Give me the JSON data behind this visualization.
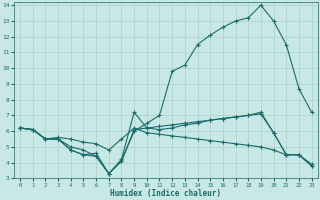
{
  "xlabel": "Humidex (Indice chaleur)",
  "background_color": "#c8e8e5",
  "grid_color": "#aed4d0",
  "line_color": "#1a6b6b",
  "xlim": [
    -0.5,
    23.5
  ],
  "ylim": [
    3,
    14.2
  ],
  "xticks": [
    0,
    1,
    2,
    3,
    4,
    5,
    6,
    7,
    8,
    9,
    10,
    11,
    12,
    13,
    14,
    15,
    16,
    17,
    18,
    19,
    20,
    21,
    22,
    23
  ],
  "yticks": [
    3,
    4,
    5,
    6,
    7,
    8,
    9,
    10,
    11,
    12,
    13,
    14
  ],
  "series": [
    [
      6.2,
      6.1,
      5.5,
      5.5,
      4.8,
      4.5,
      4.6,
      3.3,
      4.1,
      6.1,
      6.2,
      6.3,
      6.4,
      6.5,
      6.6,
      6.7,
      6.8,
      6.9,
      7.0,
      7.1,
      5.9,
      4.5,
      4.5,
      3.8
    ],
    [
      6.2,
      6.1,
      5.5,
      5.6,
      5.5,
      5.3,
      5.2,
      4.8,
      5.5,
      6.2,
      5.9,
      5.8,
      5.7,
      5.6,
      5.5,
      5.4,
      5.3,
      5.2,
      5.1,
      5.0,
      4.8,
      4.5,
      4.5,
      3.8
    ],
    [
      6.2,
      6.1,
      5.5,
      5.5,
      4.8,
      4.5,
      4.4,
      3.3,
      4.2,
      7.2,
      6.2,
      6.1,
      6.2,
      6.4,
      6.5,
      6.7,
      6.8,
      6.9,
      7.0,
      7.2,
      5.9,
      4.5,
      4.5,
      3.9
    ],
    [
      6.2,
      6.1,
      5.5,
      5.5,
      5.0,
      4.8,
      4.4,
      3.3,
      4.1,
      6.0,
      6.5,
      7.0,
      9.8,
      10.2,
      11.5,
      12.1,
      12.6,
      13.0,
      13.2,
      14.0,
      13.0,
      11.5,
      8.7,
      7.2
    ]
  ]
}
